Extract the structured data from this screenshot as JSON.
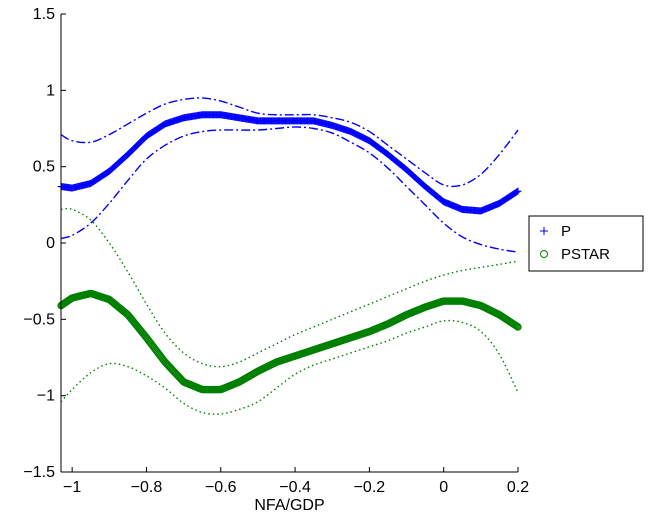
{
  "chart_data": {
    "type": "scatter",
    "title": "",
    "xlabel": "NFA/GDP",
    "ylabel": "",
    "xlim": [
      -1.03,
      0.2
    ],
    "ylim": [
      -1.5,
      1.5
    ],
    "xticks": [
      -1,
      -0.8,
      -0.6,
      -0.4,
      -0.2,
      0,
      0.2
    ],
    "xtick_labels": [
      "−1",
      "−0.8",
      "−0.6",
      "−0.4",
      "−0.2",
      "0",
      "0.2"
    ],
    "yticks": [
      -1.5,
      -1,
      -0.5,
      0,
      0.5,
      1,
      1.5
    ],
    "ytick_labels": [
      "−1.5",
      "−1",
      "−0.5",
      "0",
      "0.5",
      "1",
      "1.5"
    ],
    "grid": false,
    "legend_position": "outside-right",
    "series": [
      {
        "name": "P",
        "marker": "+",
        "color": "#0000ff",
        "x": [
          -1.03,
          -1.0,
          -0.95,
          -0.9,
          -0.85,
          -0.8,
          -0.75,
          -0.7,
          -0.65,
          -0.6,
          -0.55,
          -0.5,
          -0.45,
          -0.4,
          -0.35,
          -0.3,
          -0.25,
          -0.2,
          -0.15,
          -0.1,
          -0.05,
          0.0,
          0.05,
          0.1,
          0.15,
          0.2
        ],
        "y": [
          0.37,
          0.36,
          0.39,
          0.47,
          0.58,
          0.7,
          0.78,
          0.82,
          0.84,
          0.84,
          0.82,
          0.8,
          0.8,
          0.8,
          0.8,
          0.77,
          0.73,
          0.67,
          0.58,
          0.48,
          0.37,
          0.27,
          0.22,
          0.21,
          0.26,
          0.34
        ]
      },
      {
        "name": "PSTAR",
        "marker": "o",
        "color": "#008000",
        "x": [
          -1.03,
          -1.0,
          -0.95,
          -0.9,
          -0.85,
          -0.8,
          -0.75,
          -0.7,
          -0.65,
          -0.6,
          -0.55,
          -0.5,
          -0.45,
          -0.4,
          -0.35,
          -0.3,
          -0.25,
          -0.2,
          -0.15,
          -0.1,
          -0.05,
          0.0,
          0.05,
          0.1,
          0.15,
          0.2
        ],
        "y": [
          -0.41,
          -0.36,
          -0.33,
          -0.37,
          -0.47,
          -0.62,
          -0.78,
          -0.91,
          -0.96,
          -0.96,
          -0.91,
          -0.84,
          -0.78,
          -0.74,
          -0.7,
          -0.66,
          -0.62,
          -0.58,
          -0.53,
          -0.47,
          -0.42,
          -0.38,
          -0.38,
          -0.41,
          -0.47,
          -0.55
        ]
      }
    ],
    "bands": [
      {
        "style": "dash-dot",
        "color": "#0000ff",
        "x": [
          -1.03,
          -1.0,
          -0.95,
          -0.9,
          -0.85,
          -0.8,
          -0.75,
          -0.7,
          -0.65,
          -0.6,
          -0.55,
          -0.5,
          -0.45,
          -0.4,
          -0.35,
          -0.3,
          -0.25,
          -0.2,
          -0.15,
          -0.1,
          -0.05,
          0.0,
          0.05,
          0.1,
          0.15,
          0.2
        ],
        "upper": [
          0.71,
          0.67,
          0.66,
          0.71,
          0.78,
          0.85,
          0.91,
          0.94,
          0.95,
          0.93,
          0.89,
          0.85,
          0.84,
          0.84,
          0.84,
          0.82,
          0.79,
          0.73,
          0.64,
          0.55,
          0.46,
          0.38,
          0.38,
          0.45,
          0.58,
          0.74
        ],
        "lower": [
          0.03,
          0.05,
          0.13,
          0.26,
          0.41,
          0.55,
          0.64,
          0.7,
          0.73,
          0.74,
          0.74,
          0.74,
          0.75,
          0.76,
          0.75,
          0.72,
          0.66,
          0.59,
          0.49,
          0.37,
          0.25,
          0.13,
          0.04,
          -0.01,
          -0.04,
          -0.06
        ]
      },
      {
        "style": "dotted",
        "color": "#008000",
        "x": [
          -1.03,
          -1.0,
          -0.95,
          -0.9,
          -0.85,
          -0.8,
          -0.75,
          -0.7,
          -0.65,
          -0.6,
          -0.55,
          -0.5,
          -0.45,
          -0.4,
          -0.35,
          -0.3,
          -0.25,
          -0.2,
          -0.15,
          -0.1,
          -0.05,
          0.0,
          0.05,
          0.1,
          0.15,
          0.2
        ],
        "upper": [
          0.22,
          0.22,
          0.15,
          0.0,
          -0.19,
          -0.4,
          -0.59,
          -0.72,
          -0.79,
          -0.81,
          -0.78,
          -0.72,
          -0.66,
          -0.6,
          -0.55,
          -0.5,
          -0.45,
          -0.4,
          -0.35,
          -0.3,
          -0.25,
          -0.21,
          -0.18,
          -0.16,
          -0.14,
          -0.12
        ],
        "lower": [
          -1.04,
          -0.96,
          -0.85,
          -0.79,
          -0.81,
          -0.87,
          -0.95,
          -1.05,
          -1.11,
          -1.12,
          -1.09,
          -1.04,
          -0.95,
          -0.86,
          -0.8,
          -0.76,
          -0.72,
          -0.68,
          -0.64,
          -0.59,
          -0.55,
          -0.51,
          -0.52,
          -0.58,
          -0.73,
          -0.98
        ]
      }
    ]
  }
}
